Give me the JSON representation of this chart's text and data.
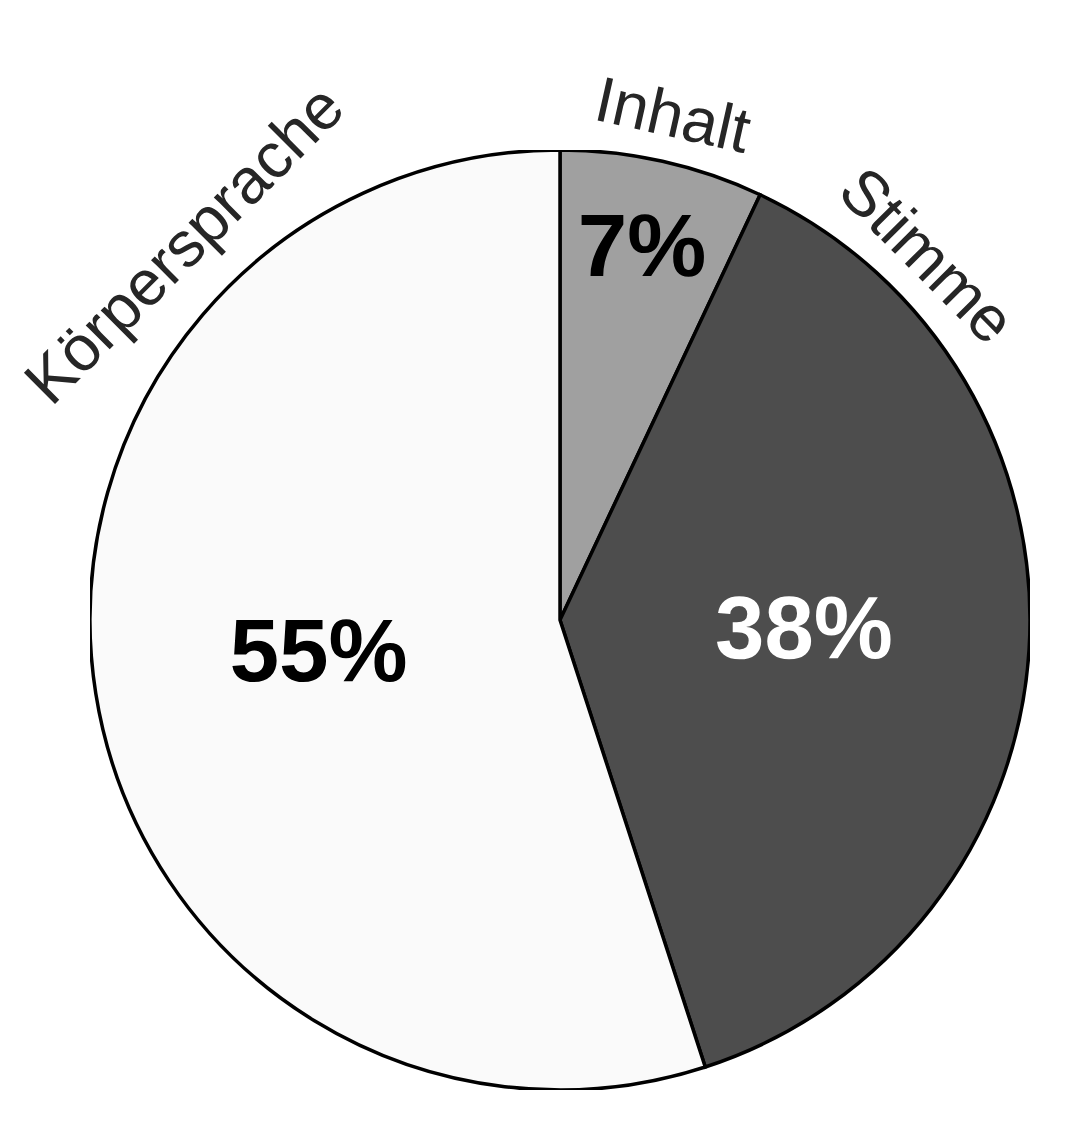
{
  "chart_data": {
    "type": "pie",
    "categories": [
      "Inhalt",
      "Stimme",
      "Körpersprache"
    ],
    "values": [
      7,
      38,
      55
    ],
    "value_labels": [
      "7%",
      "38%",
      "55%"
    ],
    "colors": [
      "#a0a0a0",
      "#4d4d4d",
      "#fafafa"
    ],
    "legend": false
  }
}
